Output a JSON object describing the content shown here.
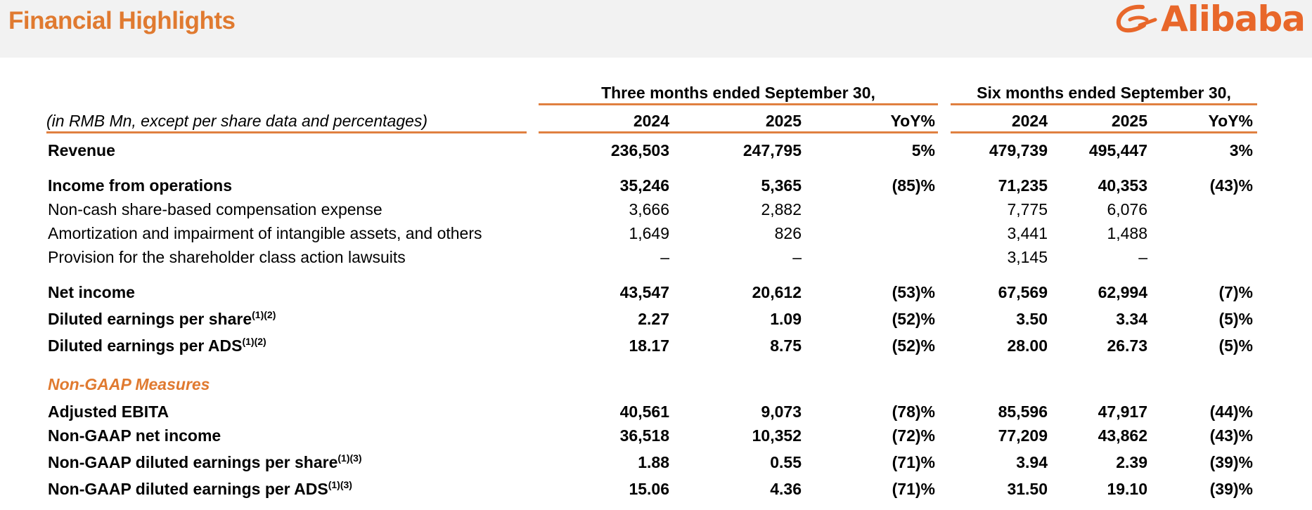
{
  "header": {
    "title": "Financial Highlights",
    "brand": "Alibaba",
    "brand_color": "#e8672a"
  },
  "table": {
    "note": "(in RMB Mn, except per share data and percentages)",
    "group_three": "Three months ended September 30,",
    "group_six": "Six months ended September 30,",
    "columns": [
      "2024",
      "2025",
      "YoY%",
      "2024",
      "2025",
      "YoY%"
    ],
    "section_nongaap": "Non-GAAP Measures",
    "rows": [
      {
        "label": "Revenue",
        "sup": "",
        "bold": true,
        "values": [
          "236,503",
          "247,795",
          "5%",
          "479,739",
          "495,447",
          "3%"
        ]
      },
      {
        "label": "Income from operations",
        "sup": "",
        "bold": true,
        "values": [
          "35,246",
          "5,365",
          "(85)%",
          "71,235",
          "40,353",
          "(43)%"
        ]
      },
      {
        "label": "Non-cash share-based compensation expense",
        "sup": "",
        "bold": false,
        "values": [
          "3,666",
          "2,882",
          "",
          "7,775",
          "6,076",
          ""
        ]
      },
      {
        "label": "Amortization and impairment of intangible assets, and others",
        "sup": "",
        "bold": false,
        "values": [
          "1,649",
          "826",
          "",
          "3,441",
          "1,488",
          ""
        ]
      },
      {
        "label": "Provision for the shareholder class action lawsuits",
        "sup": "",
        "bold": false,
        "values": [
          "–",
          "–",
          "",
          "3,145",
          "–",
          ""
        ]
      },
      {
        "label": "Net income",
        "sup": "",
        "bold": true,
        "values": [
          "43,547",
          "20,612",
          "(53)%",
          "67,569",
          "62,994",
          "(7)%"
        ]
      },
      {
        "label": "Diluted earnings per share",
        "sup": "(1)(2)",
        "bold": true,
        "values": [
          "2.27",
          "1.09",
          "(52)%",
          "3.50",
          "3.34",
          "(5)%"
        ]
      },
      {
        "label": "Diluted earnings per ADS",
        "sup": "(1)(2)",
        "bold": true,
        "values": [
          "18.17",
          "8.75",
          "(52)%",
          "28.00",
          "26.73",
          "(5)%"
        ]
      },
      {
        "label": "Adjusted EBITA",
        "sup": "",
        "bold": true,
        "values": [
          "40,561",
          "9,073",
          "(78)%",
          "85,596",
          "47,917",
          "(44)%"
        ]
      },
      {
        "label": "Non-GAAP net income",
        "sup": "",
        "bold": true,
        "values": [
          "36,518",
          "10,352",
          "(72)%",
          "77,209",
          "43,862",
          "(43)%"
        ]
      },
      {
        "label": "Non-GAAP diluted earnings per share",
        "sup": "(1)(3)",
        "bold": true,
        "values": [
          "1.88",
          "0.55",
          "(71)%",
          "3.94",
          "2.39",
          "(39)%"
        ]
      },
      {
        "label": "Non-GAAP diluted earnings per ADS",
        "sup": "(1)(3)",
        "bold": true,
        "values": [
          "15.06",
          "4.36",
          "(71)%",
          "31.50",
          "19.10",
          "(39)%"
        ]
      }
    ]
  }
}
